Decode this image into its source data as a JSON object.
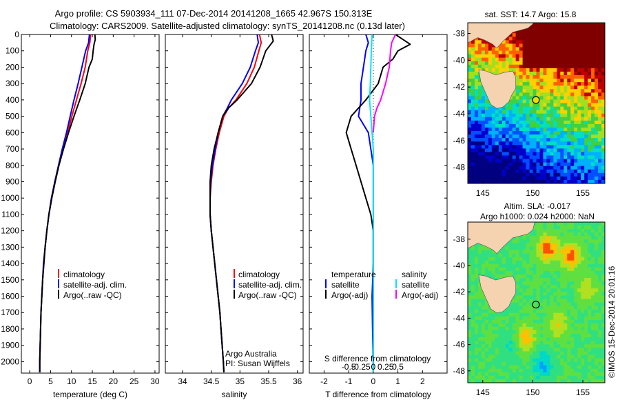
{
  "header": {
    "line1": "Argo profile: CS 5903934_111 07-Dec-2014 20141208_1665 42.967S 150.313E",
    "line2": "Climatology: CARS2009. Satellite-adjusted climatology: synTS_20141208.nc (0.13d later)"
  },
  "colors": {
    "climatology": "#ff0000",
    "satellite": "#0000ff",
    "argo": "#000000",
    "sal_satellite": "#00e5ff",
    "sal_argo": "#ff00ff"
  },
  "credits": {
    "org": "Argo Australia",
    "pi": "PI: Susan Wijffels"
  },
  "timestamp": "©IMOS 15-Dec-2014 20:01:16",
  "chart_data": [
    {
      "type": "line",
      "id": "temperature",
      "xlabel": "temperature (deg C)",
      "ylabel": "",
      "xlim": [
        -2,
        31
      ],
      "ylim": [
        2070,
        0
      ],
      "xticks": [
        0,
        5,
        10,
        15,
        20,
        25,
        30
      ],
      "yticks": [
        0,
        100,
        200,
        300,
        400,
        500,
        600,
        700,
        800,
        900,
        1000,
        1100,
        1200,
        1300,
        1400,
        1500,
        1600,
        1700,
        1800,
        1900,
        2000
      ],
      "legend": [
        "climatology",
        "satellite-adj. clim.",
        "Argo(..raw -QC)"
      ],
      "legend_position": "lower-center",
      "series": [
        {
          "name": "climatology",
          "color_key": "climatology",
          "points": [
            [
              14.6,
              0
            ],
            [
              14.4,
              50
            ],
            [
              13.9,
              100
            ],
            [
              13.3,
              200
            ],
            [
              12.3,
              300
            ],
            [
              11.2,
              400
            ],
            [
              10.1,
              500
            ],
            [
              9.1,
              600
            ],
            [
              8.0,
              700
            ],
            [
              7.0,
              800
            ],
            [
              6.1,
              900
            ],
            [
              5.3,
              1000
            ],
            [
              4.6,
              1100
            ],
            [
              4.1,
              1200
            ],
            [
              3.7,
              1300
            ],
            [
              3.4,
              1400
            ],
            [
              3.1,
              1500
            ],
            [
              2.9,
              1600
            ],
            [
              2.7,
              1700
            ],
            [
              2.6,
              1800
            ],
            [
              2.5,
              1900
            ],
            [
              2.4,
              2000
            ],
            [
              2.4,
              2065
            ]
          ]
        },
        {
          "name": "satellite-adj. clim.",
          "color_key": "satellite",
          "points": [
            [
              14.3,
              0
            ],
            [
              14.1,
              50
            ],
            [
              13.4,
              100
            ],
            [
              12.5,
              200
            ],
            [
              11.6,
              300
            ],
            [
              10.6,
              400
            ],
            [
              9.7,
              500
            ],
            [
              8.8,
              600
            ],
            [
              7.8,
              700
            ],
            [
              6.9,
              800
            ],
            [
              6.0,
              900
            ],
            [
              5.2,
              1000
            ],
            [
              4.6,
              1100
            ],
            [
              4.1,
              1200
            ],
            [
              3.7,
              1300
            ],
            [
              3.3,
              1400
            ],
            [
              3.1,
              1500
            ],
            [
              2.9,
              1600
            ],
            [
              2.7,
              1700
            ],
            [
              2.6,
              1800
            ],
            [
              2.5,
              1900
            ],
            [
              2.4,
              2000
            ],
            [
              2.4,
              2065
            ]
          ]
        },
        {
          "name": "Argo(..raw -QC)",
          "color_key": "argo",
          "points": [
            [
              15.6,
              0
            ],
            [
              15.7,
              30
            ],
            [
              15.4,
              60
            ],
            [
              15.2,
              100
            ],
            [
              15.0,
              150
            ],
            [
              14.2,
              200
            ],
            [
              13.3,
              300
            ],
            [
              12.0,
              400
            ],
            [
              10.6,
              500
            ],
            [
              9.3,
              600
            ],
            [
              8.1,
              700
            ],
            [
              7.0,
              800
            ],
            [
              6.1,
              900
            ],
            [
              5.3,
              1000
            ],
            [
              4.6,
              1100
            ],
            [
              4.1,
              1200
            ],
            [
              3.7,
              1300
            ],
            [
              3.4,
              1400
            ],
            [
              3.1,
              1500
            ],
            [
              2.9,
              1600
            ],
            [
              2.7,
              1700
            ],
            [
              2.6,
              1800
            ],
            [
              2.5,
              1900
            ],
            [
              2.4,
              2000
            ],
            [
              2.4,
              2065
            ]
          ]
        }
      ]
    },
    {
      "type": "line",
      "id": "salinity",
      "xlabel": "salinity",
      "ylabel": "",
      "xlim": [
        33.7,
        36.1
      ],
      "ylim": [
        2070,
        0
      ],
      "xticks": [
        34,
        34.5,
        35,
        35.5,
        36
      ],
      "legend": [
        "climatology",
        "satellite-adj. clim.",
        "Argo(..raw -QC)"
      ],
      "legend_position": "lower-center",
      "series": [
        {
          "name": "climatology",
          "color_key": "climatology",
          "points": [
            [
              35.34,
              0
            ],
            [
              35.37,
              50
            ],
            [
              35.33,
              100
            ],
            [
              35.25,
              200
            ],
            [
              35.12,
              300
            ],
            [
              34.93,
              400
            ],
            [
              34.8,
              450
            ],
            [
              34.72,
              500
            ],
            [
              34.64,
              600
            ],
            [
              34.58,
              700
            ],
            [
              34.53,
              800
            ],
            [
              34.5,
              900
            ],
            [
              34.48,
              1000
            ],
            [
              34.48,
              1100
            ],
            [
              34.5,
              1200
            ],
            [
              34.53,
              1300
            ],
            [
              34.56,
              1400
            ],
            [
              34.59,
              1500
            ],
            [
              34.62,
              1600
            ],
            [
              34.65,
              1700
            ],
            [
              34.67,
              1800
            ],
            [
              34.69,
              1900
            ],
            [
              34.71,
              2000
            ],
            [
              34.72,
              2065
            ]
          ]
        },
        {
          "name": "satellite-adj. clim.",
          "color_key": "satellite",
          "points": [
            [
              35.3,
              0
            ],
            [
              35.32,
              50
            ],
            [
              35.27,
              100
            ],
            [
              35.18,
              200
            ],
            [
              35.04,
              300
            ],
            [
              34.85,
              400
            ],
            [
              34.78,
              450
            ],
            [
              34.7,
              500
            ],
            [
              34.62,
              600
            ],
            [
              34.57,
              700
            ],
            [
              34.52,
              800
            ],
            [
              34.49,
              900
            ],
            [
              34.48,
              1000
            ],
            [
              34.48,
              1100
            ],
            [
              34.5,
              1200
            ],
            [
              34.53,
              1300
            ],
            [
              34.56,
              1400
            ],
            [
              34.59,
              1500
            ],
            [
              34.62,
              1600
            ],
            [
              34.65,
              1700
            ],
            [
              34.67,
              1800
            ],
            [
              34.69,
              1900
            ],
            [
              34.71,
              2000
            ],
            [
              34.72,
              2065
            ]
          ]
        },
        {
          "name": "Argo(..raw -QC)",
          "color_key": "argo",
          "points": [
            [
              35.55,
              0
            ],
            [
              35.58,
              40
            ],
            [
              35.45,
              100
            ],
            [
              35.35,
              200
            ],
            [
              35.2,
              300
            ],
            [
              34.95,
              400
            ],
            [
              34.8,
              450
            ],
            [
              34.7,
              500
            ],
            [
              34.62,
              600
            ],
            [
              34.55,
              700
            ],
            [
              34.5,
              800
            ],
            [
              34.48,
              900
            ],
            [
              34.48,
              1000
            ],
            [
              34.48,
              1100
            ],
            [
              34.5,
              1200
            ],
            [
              34.53,
              1300
            ],
            [
              34.56,
              1400
            ],
            [
              34.59,
              1500
            ],
            [
              34.62,
              1600
            ],
            [
              34.65,
              1700
            ],
            [
              34.67,
              1800
            ],
            [
              34.69,
              1900
            ],
            [
              34.71,
              2000
            ],
            [
              34.72,
              2065
            ]
          ]
        }
      ]
    },
    {
      "type": "line",
      "id": "differences",
      "xlabel": "T difference from climatology",
      "xlabel_top": "S difference from climatology",
      "xlim": [
        -2.6,
        3.0
      ],
      "ylim": [
        2070,
        0
      ],
      "xticks_T": [
        -2,
        -1,
        0,
        1,
        2
      ],
      "xticks_S": [
        "-0.5",
        "-0.25",
        "0",
        "0.25",
        "0.5"
      ],
      "legend_T_title": "temperature",
      "legend_S_title": "salinity",
      "legend_T": [
        "satellite",
        "Argo(-adj)"
      ],
      "legend_S": [
        "satellite",
        "Argo(-adj)"
      ],
      "series": [
        {
          "name": "T satellite",
          "color_key": "satellite",
          "points": [
            [
              -0.3,
              0
            ],
            [
              -0.2,
              50
            ],
            [
              -0.3,
              100
            ],
            [
              -0.4,
              200
            ],
            [
              -0.5,
              300
            ],
            [
              -0.5,
              400
            ],
            [
              -0.6,
              500
            ],
            [
              -0.4,
              550
            ],
            [
              -0.2,
              600
            ],
            [
              -0.1,
              700
            ],
            [
              0.0,
              800
            ],
            [
              0.0,
              1000
            ],
            [
              0.0,
              1200
            ],
            [
              0.0,
              1400
            ],
            [
              -0.05,
              1600
            ],
            [
              -0.03,
              1800
            ],
            [
              0.0,
              2000
            ],
            [
              0.0,
              2065
            ]
          ]
        },
        {
          "name": "T Argo(-adj)",
          "color_key": "argo",
          "points": [
            [
              0.9,
              0
            ],
            [
              1.2,
              30
            ],
            [
              1.5,
              60
            ],
            [
              1.0,
              100
            ],
            [
              0.8,
              150
            ],
            [
              0.4,
              200
            ],
            [
              0.2,
              300
            ],
            [
              -0.3,
              400
            ],
            [
              -0.6,
              450
            ],
            [
              -0.9,
              500
            ],
            [
              -1.0,
              550
            ],
            [
              -1.1,
              600
            ],
            [
              -0.9,
              700
            ],
            [
              -0.7,
              800
            ],
            [
              -0.5,
              900
            ],
            [
              -0.3,
              1000
            ],
            [
              -0.1,
              1100
            ],
            [
              0.0,
              1200
            ],
            [
              0.0,
              1400
            ],
            [
              0.0,
              1600
            ],
            [
              0.0,
              1800
            ],
            [
              0.0,
              2000
            ],
            [
              0.0,
              2065
            ]
          ]
        },
        {
          "name": "S satellite",
          "color_key": "sal_satellite",
          "points": [
            [
              -0.05,
              0
            ],
            [
              -0.08,
              100
            ],
            [
              -0.1,
              200
            ],
            [
              -0.12,
              300
            ],
            [
              -0.15,
              400
            ],
            [
              -0.1,
              500
            ],
            [
              -0.05,
              600
            ],
            [
              0.0,
              700
            ],
            [
              0.0,
              800
            ],
            [
              0.0,
              900
            ],
            [
              0.0,
              1000
            ],
            [
              0.0,
              1200
            ],
            [
              0.0,
              1400
            ],
            [
              0.0,
              1600
            ],
            [
              0.0,
              1800
            ],
            [
              0.0,
              2000
            ],
            [
              0.0,
              2065
            ]
          ]
        },
        {
          "name": "S Argo(-adj)",
          "color_key": "sal_argo",
          "points": [
            [
              0.9,
              0
            ],
            [
              0.75,
              50
            ],
            [
              0.7,
              100
            ],
            [
              0.65,
              200
            ],
            [
              0.5,
              300
            ],
            [
              0.3,
              400
            ],
            [
              0.15,
              450
            ],
            [
              0.05,
              500
            ],
            [
              0.0,
              600
            ]
          ]
        }
      ]
    },
    {
      "type": "heatmap",
      "id": "sst_map",
      "title": "sat. SST: 14.7  Argo: 15.8",
      "xticks": [
        145,
        150,
        155
      ],
      "yticks": [
        -38,
        -40,
        -42,
        -44,
        -46,
        -48
      ],
      "xlim": [
        143.5,
        157.2
      ],
      "ylim": [
        -49.2,
        -37.2
      ],
      "float_position": [
        150.313,
        -42.967
      ]
    },
    {
      "type": "heatmap",
      "id": "sla_map",
      "title_line1": "Altim. SLA: -0.017",
      "title_line2": "Argo h1000: 0.024 h2000: NaN",
      "xticks": [
        145,
        150,
        155
      ],
      "yticks": [
        -38,
        -40,
        -42,
        -44,
        -46,
        -48
      ],
      "xlim": [
        143.5,
        157.2
      ],
      "ylim": [
        -48.9,
        -36.7
      ],
      "float_position": [
        150.313,
        -42.967
      ]
    }
  ]
}
